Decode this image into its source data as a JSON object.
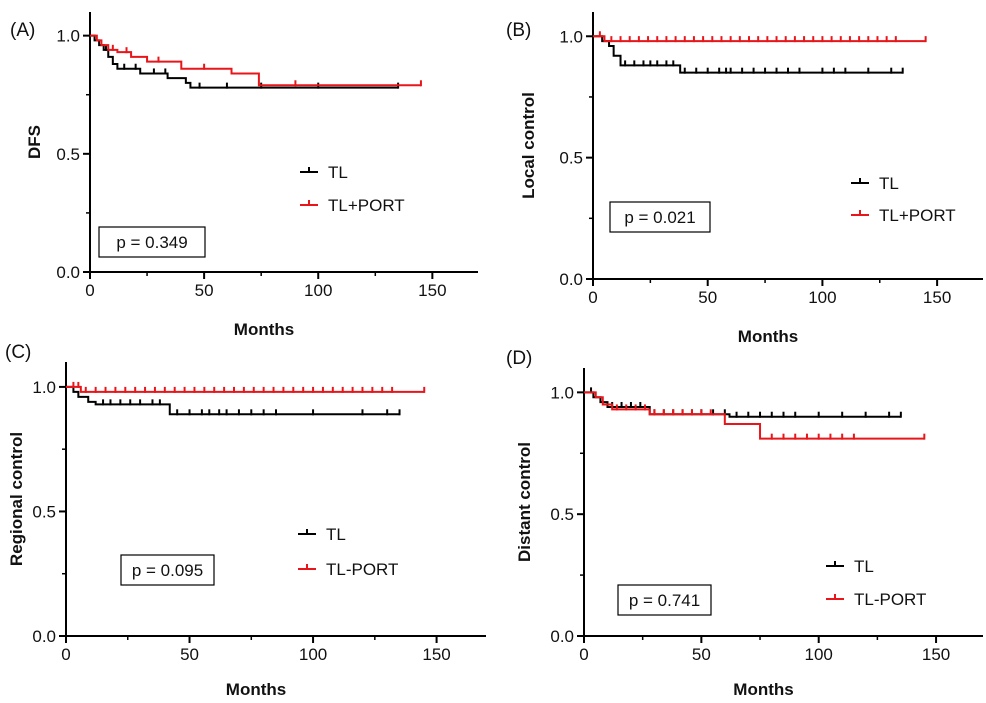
{
  "colors": {
    "TL": "#000000",
    "TL_PORT": "#e8161a"
  },
  "chart_data": [
    {
      "type": "line",
      "panel_label": "(A)",
      "xlabel": "Months",
      "ylabel": "DFS",
      "xlim": [
        0,
        170
      ],
      "ylim": [
        0,
        1.1
      ],
      "xticks": [
        "0",
        "50",
        "100",
        "150"
      ],
      "yticks": [
        "0.0",
        "0.5",
        "1.0"
      ],
      "legend": [
        "TL",
        "TL+PORT"
      ],
      "p_value": "p = 0.349",
      "series": [
        {
          "name": "TL",
          "color": "#000000",
          "points": [
            [
              0,
              1.0
            ],
            [
              2,
              0.98
            ],
            [
              4,
              0.96
            ],
            [
              6,
              0.94
            ],
            [
              8,
              0.91
            ],
            [
              10,
              0.88
            ],
            [
              12,
              0.86
            ],
            [
              20,
              0.86
            ],
            [
              22,
              0.84
            ],
            [
              32,
              0.84
            ],
            [
              34,
              0.82
            ],
            [
              40,
              0.82
            ],
            [
              42,
              0.8
            ],
            [
              44,
              0.78
            ],
            [
              135,
              0.78
            ]
          ],
          "censored": [
            7,
            15,
            20,
            28,
            33,
            48,
            60,
            75,
            100,
            135
          ]
        },
        {
          "name": "TL+PORT",
          "color": "#e8161a",
          "points": [
            [
              0,
              1.0
            ],
            [
              3,
              0.98
            ],
            [
              5,
              0.96
            ],
            [
              8,
              0.94
            ],
            [
              12,
              0.93
            ],
            [
              18,
              0.91
            ],
            [
              25,
              0.89
            ],
            [
              38,
              0.89
            ],
            [
              40,
              0.86
            ],
            [
              60,
              0.86
            ],
            [
              62,
              0.84
            ],
            [
              72,
              0.84
            ],
            [
              74,
              0.79
            ],
            [
              145,
              0.79
            ]
          ],
          "censored": [
            10,
            16,
            30,
            50,
            90,
            145
          ]
        }
      ]
    },
    {
      "type": "line",
      "panel_label": "(B)",
      "xlabel": "Months",
      "ylabel": "Local control",
      "xlim": [
        0,
        170
      ],
      "ylim": [
        0,
        1.1
      ],
      "xticks": [
        "0",
        "50",
        "100",
        "150"
      ],
      "yticks": [
        "0.0",
        "0.5",
        "1.0"
      ],
      "legend": [
        "TL",
        "TL+PORT"
      ],
      "p_value": "p = 0.021",
      "series": [
        {
          "name": "TL",
          "color": "#000000",
          "points": [
            [
              0,
              1.0
            ],
            [
              4,
              0.98
            ],
            [
              7,
              0.96
            ],
            [
              9,
              0.92
            ],
            [
              12,
              0.88
            ],
            [
              37,
              0.88
            ],
            [
              38,
              0.85
            ],
            [
              135,
              0.85
            ]
          ],
          "censored": [
            14,
            18,
            22,
            25,
            28,
            32,
            35,
            40,
            45,
            50,
            55,
            58,
            60,
            65,
            70,
            75,
            80,
            85,
            90,
            100,
            105,
            110,
            120,
            130,
            135
          ]
        },
        {
          "name": "TL+PORT",
          "color": "#e8161a",
          "points": [
            [
              0,
              1.0
            ],
            [
              4,
              1.0
            ],
            [
              5,
              0.98
            ],
            [
              145,
              0.98
            ]
          ],
          "censored": [
            3,
            8,
            12,
            16,
            20,
            24,
            28,
            32,
            36,
            40,
            44,
            48,
            52,
            56,
            60,
            64,
            68,
            72,
            76,
            80,
            84,
            88,
            92,
            96,
            100,
            104,
            108,
            112,
            116,
            120,
            124,
            128,
            132,
            145
          ]
        }
      ]
    },
    {
      "type": "line",
      "panel_label": "(C)",
      "xlabel": "Months",
      "ylabel": "Regional control",
      "xlim": [
        0,
        170
      ],
      "ylim": [
        0,
        1.1
      ],
      "xticks": [
        "0",
        "50",
        "100",
        "150"
      ],
      "yticks": [
        "0.0",
        "0.5",
        "1.0"
      ],
      "legend": [
        "TL",
        "TL-PORT"
      ],
      "p_value": "p = 0.095",
      "series": [
        {
          "name": "TL",
          "color": "#000000",
          "points": [
            [
              0,
              1.0
            ],
            [
              3,
              0.98
            ],
            [
              5,
              0.96
            ],
            [
              9,
              0.94
            ],
            [
              12,
              0.93
            ],
            [
              41,
              0.93
            ],
            [
              42,
              0.89
            ],
            [
              135,
              0.89
            ]
          ],
          "censored": [
            15,
            18,
            22,
            26,
            30,
            35,
            38,
            45,
            50,
            55,
            58,
            62,
            65,
            70,
            75,
            80,
            85,
            100,
            120,
            130,
            135
          ]
        },
        {
          "name": "TL+PORT",
          "color": "#e8161a",
          "points": [
            [
              0,
              1.0
            ],
            [
              4,
              1.0
            ],
            [
              6,
              0.98
            ],
            [
              145,
              0.98
            ]
          ],
          "censored": [
            3,
            5,
            8,
            12,
            16,
            20,
            24,
            28,
            32,
            36,
            40,
            44,
            48,
            52,
            56,
            60,
            64,
            68,
            72,
            76,
            80,
            84,
            88,
            92,
            96,
            100,
            104,
            108,
            112,
            116,
            120,
            124,
            128,
            132,
            145
          ]
        }
      ]
    },
    {
      "type": "line",
      "panel_label": "(D)",
      "xlabel": "Months",
      "ylabel": "Distant control",
      "xlim": [
        0,
        170
      ],
      "ylim": [
        0,
        1.1
      ],
      "xticks": [
        "0",
        "50",
        "100",
        "150"
      ],
      "yticks": [
        "0.0",
        "0.5",
        "1.0"
      ],
      "legend": [
        "TL",
        "TL-PORT"
      ],
      "p_value": "p = 0.741",
      "series": [
        {
          "name": "TL",
          "color": "#000000",
          "points": [
            [
              0,
              1.0
            ],
            [
              4,
              0.98
            ],
            [
              7,
              0.96
            ],
            [
              10,
              0.94
            ],
            [
              26,
              0.94
            ],
            [
              28,
              0.91
            ],
            [
              60,
              0.91
            ],
            [
              62,
              0.9
            ],
            [
              135,
              0.9
            ]
          ],
          "censored": [
            3,
            12,
            16,
            20,
            24,
            30,
            34,
            38,
            42,
            46,
            50,
            55,
            60,
            65,
            70,
            75,
            80,
            85,
            90,
            100,
            110,
            120,
            130,
            135
          ]
        },
        {
          "name": "TL+PORT",
          "color": "#e8161a",
          "points": [
            [
              0,
              1.0
            ],
            [
              5,
              0.98
            ],
            [
              8,
              0.95
            ],
            [
              12,
              0.93
            ],
            [
              28,
              0.91
            ],
            [
              58,
              0.91
            ],
            [
              60,
              0.87
            ],
            [
              74,
              0.87
            ],
            [
              75,
              0.81
            ],
            [
              145,
              0.81
            ]
          ],
          "censored": [
            14,
            18,
            22,
            26,
            30,
            34,
            38,
            42,
            46,
            50,
            54,
            80,
            85,
            90,
            95,
            100,
            105,
            110,
            115,
            145
          ]
        }
      ]
    }
  ]
}
